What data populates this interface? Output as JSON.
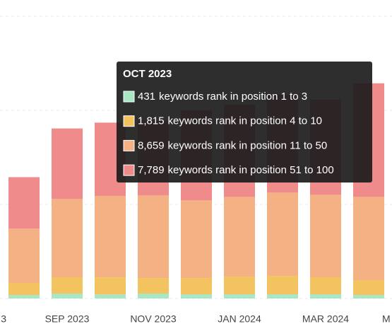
{
  "chart_data": {
    "type": "stacked_bar",
    "categories": [
      "3",
      null,
      "SEP 2023",
      null,
      "NOV 2023",
      null,
      "JAN 2024",
      null,
      "MAR 2024",
      null,
      "M"
    ],
    "series": [
      {
        "name": "keywords rank in position 1 to 3",
        "color": "#a8e6c4",
        "values": [
          null,
          375,
          525,
          431,
          525,
          450,
          450,
          450,
          450,
          375,
          null
        ],
        "value_labels": [
          null,
          null,
          null,
          "431",
          null,
          null,
          null,
          null,
          null,
          null,
          null
        ]
      },
      {
        "name": "keywords rank in position 4 to 10",
        "color": "#f2c35f",
        "values": [
          null,
          1275,
          1725,
          1815,
          1650,
          1725,
          1875,
          1950,
          1800,
          1575,
          null
        ],
        "value_labels": [
          null,
          null,
          null,
          "1,815",
          null,
          null,
          null,
          null,
          null,
          null,
          null
        ]
      },
      {
        "name": "keywords rank in position 11 to 50",
        "color": "#f4b183",
        "values": [
          null,
          5775,
          8325,
          8659,
          8775,
          8250,
          8475,
          8850,
          8775,
          8850,
          null
        ],
        "value_labels": [
          null,
          null,
          null,
          "8,659",
          null,
          null,
          null,
          null,
          null,
          null,
          null
        ]
      },
      {
        "name": "keywords rank in position 51 to 100",
        "color": "#f08b8b",
        "values": [
          null,
          5475,
          7500,
          7789,
          7950,
          9600,
          9825,
          10425,
          10125,
          12075,
          null
        ],
        "value_labels": [
          null,
          null,
          null,
          "7,789",
          null,
          null,
          null,
          null,
          null,
          null,
          null
        ]
      }
    ],
    "tooltip_title": "OCT 2023",
    "ylim": [
      0,
      30000
    ],
    "yticks": [
      0,
      10000,
      20000,
      30000
    ],
    "grid": true
  }
}
